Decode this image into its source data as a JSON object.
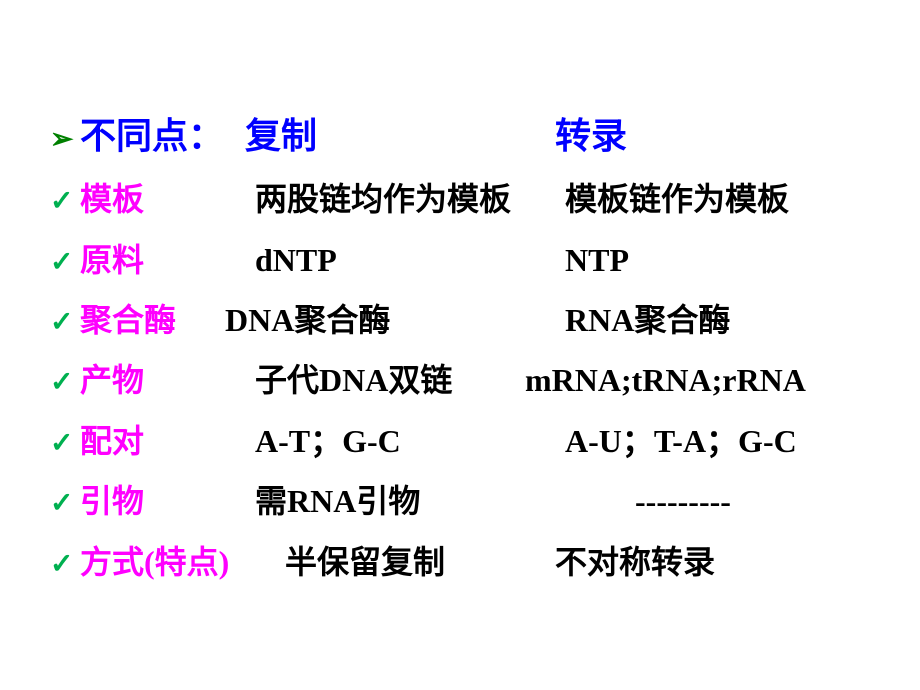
{
  "header": {
    "label": "不同点：",
    "col_a": "复制",
    "col_b": "转录"
  },
  "rows": [
    {
      "label": "模板",
      "a": "两股链均作为模板",
      "b": "模板链作为模板"
    },
    {
      "label": "原料",
      "a": "dNTP",
      "b": "NTP"
    },
    {
      "label": "聚合酶",
      "a": "DNA聚合酶",
      "b": "RNA聚合酶"
    },
    {
      "label": "产物",
      "a": "子代DNA双链",
      "b": "mRNA;tRNA;rRNA"
    },
    {
      "label": "配对",
      "a": "A-T；G-C",
      "b": "A-U；T-A；G-C"
    },
    {
      "label": "引物",
      "a": "需RNA引物",
      "b": "---------"
    },
    {
      "label": "方式(特点)",
      "a": "半保留复制",
      "b": "不对称转录"
    }
  ],
  "colors": {
    "arrow": "#008000",
    "check": "#00b050",
    "header_text": "#0000ff",
    "label_text": "#ff00ff",
    "value_text": "#000000",
    "background": "#ffffff"
  },
  "font_sizes": {
    "header": 36,
    "body": 32
  }
}
